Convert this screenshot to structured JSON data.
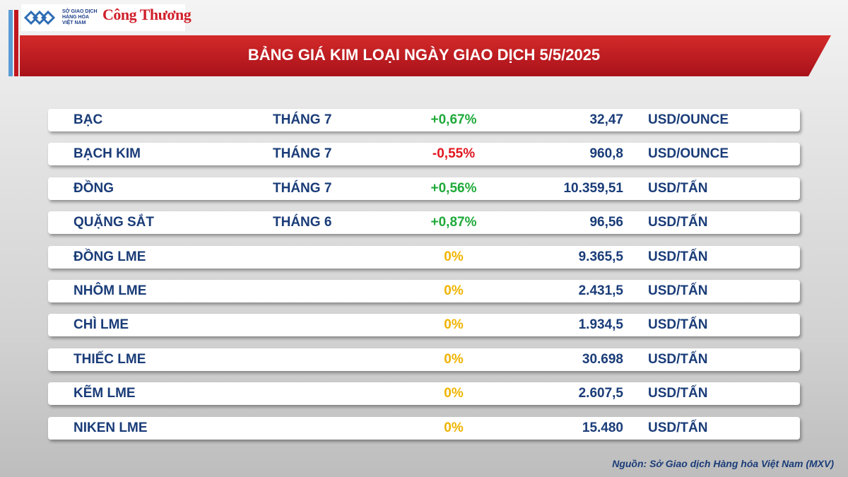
{
  "header": {
    "logo_exchange": [
      "SỞ GIAO DỊCH",
      "HÀNG HÓA",
      "VIỆT NAM"
    ],
    "logo_paper": "Công Thương",
    "title": "BẢNG GIÁ KIM LOẠI NGÀY GIAO DỊCH 5/5/2025"
  },
  "table": {
    "rows": [
      {
        "name": "BẠC",
        "month": "THÁNG 7",
        "change": "+0,67%",
        "price": "32,47",
        "unit": "USD/OUNCE"
      },
      {
        "name": "BẠCH KIM",
        "month": "THÁNG 7",
        "change": "-0,55%",
        "price": "960,8",
        "unit": "USD/OUNCE"
      },
      {
        "name": "ĐỒNG",
        "month": "THÁNG 7",
        "change": "+0,56%",
        "price": "10.359,51",
        "unit": "USD/TẤN"
      },
      {
        "name": "QUẶNG SẮT",
        "month": "THÁNG 6",
        "change": "+0,87%",
        "price": "96,56",
        "unit": "USD/TẤN"
      },
      {
        "name": "ĐỒNG LME",
        "change": "0%",
        "price": "9.365,5",
        "unit": "USD/TẤN"
      },
      {
        "name": "NHÔM LME",
        "change": "0%",
        "price": "2.431,5",
        "unit": "USD/TẤN"
      },
      {
        "name": "CHÌ LME",
        "change": "0%",
        "price": "1.934,5",
        "unit": "USD/TẤN"
      },
      {
        "name": "THIẾC LME",
        "change": "0%",
        "price": "30.698",
        "unit": "USD/TẤN"
      },
      {
        "name": "KẼM LME",
        "change": "0%",
        "price": "2.607,5",
        "unit": "USD/TẤN"
      },
      {
        "name": "NIKEN LME",
        "change": "0%",
        "price": "15.480",
        "unit": "USD/TẤN"
      }
    ]
  },
  "footer": {
    "source": "Nguồn: Sở Giao dịch Hàng hóa Việt Nam (MXV)"
  }
}
